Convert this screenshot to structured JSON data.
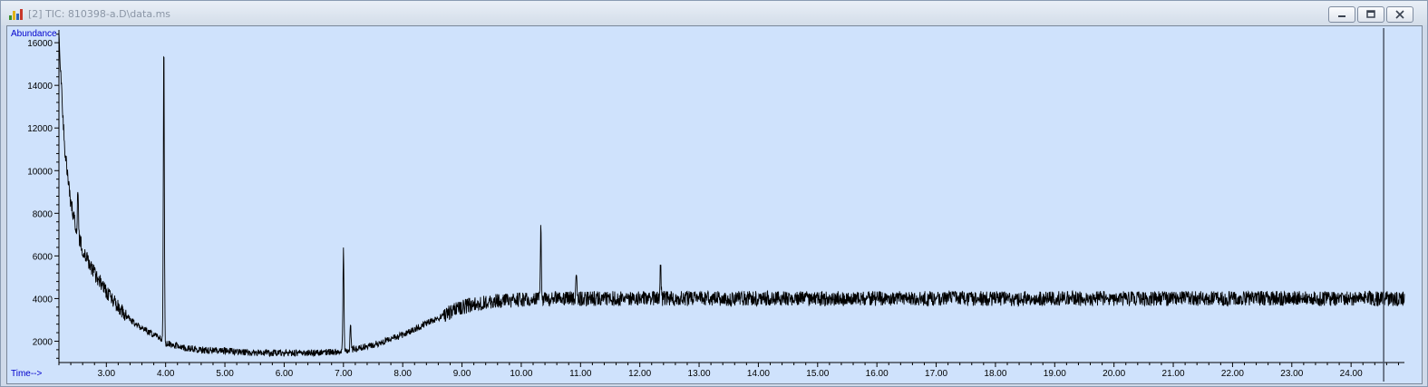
{
  "window": {
    "title": "[2] TIC: 810398-a.D\\data.ms",
    "icon": "chromatogram-app-icon",
    "buttons": [
      "minimize-icon",
      "restore-icon",
      "close-icon"
    ]
  },
  "colors": {
    "plot_background": "#cfe2fc",
    "trace": "#000000",
    "axis_label": "#0000cc",
    "frame": "#cfdaea"
  },
  "chart_data": {
    "type": "line",
    "ylabel": "Abundance",
    "xlabel": "Time-->",
    "xlim": [
      2.2,
      24.9
    ],
    "ylim": [
      1000,
      16600
    ],
    "x_ticks": [
      3.0,
      4.0,
      5.0,
      6.0,
      7.0,
      8.0,
      9.0,
      10.0,
      11.0,
      12.0,
      13.0,
      14.0,
      15.0,
      16.0,
      17.0,
      18.0,
      19.0,
      20.0,
      21.0,
      22.0,
      23.0,
      24.0
    ],
    "x_tick_labels": [
      "3.00",
      "4.00",
      "5.00",
      "6.00",
      "7.00",
      "8.00",
      "9.00",
      "10.00",
      "11.00",
      "12.00",
      "13.00",
      "14.00",
      "15.00",
      "16.00",
      "17.00",
      "18.00",
      "19.00",
      "20.00",
      "21.00",
      "22.00",
      "23.00",
      "24.00"
    ],
    "y_ticks": [
      2000,
      4000,
      6000,
      8000,
      10000,
      12000,
      14000,
      16000
    ],
    "y_tick_labels": [
      "2000",
      "4000",
      "6000",
      "8000",
      "10000",
      "12000",
      "14000",
      "16000"
    ],
    "grid": false,
    "cursor_x": 24.55,
    "series": [
      {
        "x": [
          2.2,
          2.25,
          2.3,
          2.4,
          2.5,
          2.6,
          2.8,
          3.0,
          3.2,
          3.4,
          3.6,
          3.8,
          3.88,
          3.95,
          4.0,
          4.1,
          4.3,
          4.6,
          5.0,
          5.5,
          6.0,
          6.5,
          6.9,
          7.0,
          7.1,
          7.3,
          7.6,
          8.0,
          8.3,
          8.6,
          8.9,
          9.2,
          9.5,
          10.0,
          10.5,
          11.0,
          12.0,
          13.0,
          14.0,
          15.0,
          16.0,
          17.0,
          18.0,
          19.0,
          20.0,
          21.0,
          22.0,
          23.0,
          24.0,
          24.9
        ],
        "y": [
          16500,
          13500,
          11000,
          8500,
          7200,
          6300,
          5200,
          4300,
          3600,
          3000,
          2600,
          2300,
          2150,
          2000,
          1900,
          1850,
          1700,
          1600,
          1550,
          1450,
          1450,
          1450,
          1500,
          1550,
          1600,
          1700,
          1900,
          2300,
          2700,
          3100,
          3500,
          3750,
          3850,
          3950,
          4000,
          4000,
          4000,
          4000,
          4000,
          4000,
          4000,
          4000,
          4000,
          4000,
          4000,
          4000,
          4000,
          4000,
          4000,
          4000
        ],
        "noise_amplitude": 350,
        "peaks": [
          {
            "x": 2.52,
            "height": 9100
          },
          {
            "x": 3.97,
            "height": 16000
          },
          {
            "x": 7.0,
            "height": 6400
          },
          {
            "x": 7.12,
            "height": 2900
          },
          {
            "x": 10.33,
            "height": 7200
          },
          {
            "x": 10.93,
            "height": 5300
          },
          {
            "x": 12.35,
            "height": 5600
          }
        ]
      }
    ]
  }
}
